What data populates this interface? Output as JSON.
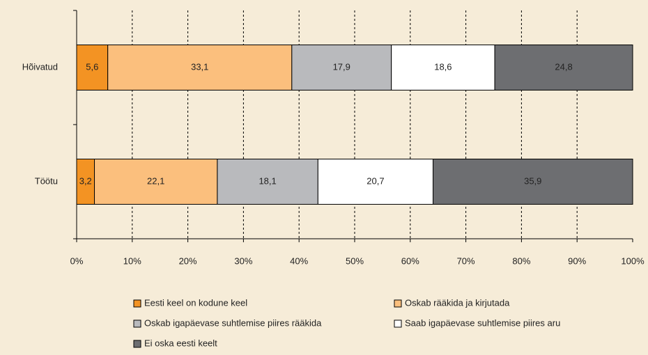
{
  "chart_data": {
    "type": "stacked-barh",
    "categories": [
      "Hõivatud",
      "Töötu"
    ],
    "series": [
      {
        "name": "Eesti keel on kodune keel",
        "color": "#f39323",
        "values": [
          5.6,
          3.2
        ],
        "value_labels": [
          "5,6",
          "3,2"
        ]
      },
      {
        "name": "Oskab rääkida ja kirjutada",
        "color": "#fbbf7d",
        "values": [
          33.1,
          22.1
        ],
        "value_labels": [
          "33,1",
          "22,1"
        ]
      },
      {
        "name": "Oskab igapäevase suhtlemise piires rääkida",
        "color": "#b9babd",
        "values": [
          17.9,
          18.1
        ],
        "value_labels": [
          "17,9",
          "18,1"
        ]
      },
      {
        "name": "Saab igapäevase suhtlemise piires aru",
        "color": "#ffffff",
        "values": [
          18.6,
          20.7
        ],
        "value_labels": [
          "18,6",
          "20,7"
        ]
      },
      {
        "name": "Ei oska eesti keelt",
        "color": "#6d6e71",
        "values": [
          24.8,
          35.9
        ],
        "value_labels": [
          "24,8",
          "35,9"
        ]
      }
    ],
    "xlim": [
      0,
      100
    ],
    "xticks": [
      {
        "value": 0,
        "label": "0%"
      },
      {
        "value": 10,
        "label": "10%"
      },
      {
        "value": 20,
        "label": "20%"
      },
      {
        "value": 30,
        "label": "30%"
      },
      {
        "value": 40,
        "label": "40%"
      },
      {
        "value": 50,
        "label": "50%"
      },
      {
        "value": 60,
        "label": "60%"
      },
      {
        "value": 70,
        "label": "70%"
      },
      {
        "value": 80,
        "label": "80%"
      },
      {
        "value": 90,
        "label": "90%"
      },
      {
        "value": 100,
        "label": "100%"
      }
    ],
    "grid": true
  }
}
